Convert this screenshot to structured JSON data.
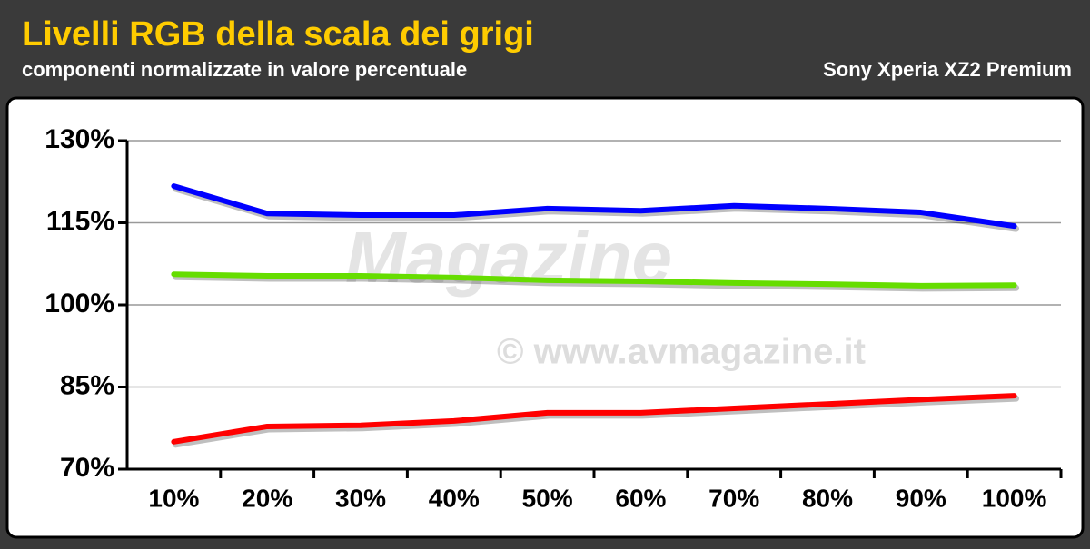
{
  "chart_data": {
    "type": "line",
    "title": "Livelli RGB della scala dei grigi",
    "subtitle": "componenti normalizzate in valore percentuale",
    "device": "Sony Xperia XZ2 Premium",
    "watermark": "© www.avmagazine.it",
    "watermark_logo": "Magazine",
    "categories": [
      "10%",
      "20%",
      "30%",
      "40%",
      "50%",
      "60%",
      "70%",
      "80%",
      "90%",
      "100%"
    ],
    "series": [
      {
        "color": "#0000ff",
        "values": [
          121.7,
          116.7,
          116.4,
          116.4,
          117.6,
          117.2,
          118.1,
          117.6,
          116.9,
          114.4
        ]
      },
      {
        "color": "#66dd00",
        "values": [
          105.6,
          105.3,
          105.3,
          105.0,
          104.5,
          104.3,
          104.0,
          103.8,
          103.5,
          103.6
        ]
      },
      {
        "color": "#ff0000",
        "values": [
          75.0,
          77.8,
          78.0,
          78.8,
          80.3,
          80.3,
          81.1,
          81.9,
          82.7,
          83.4
        ]
      }
    ],
    "ylim": [
      70,
      130
    ],
    "yticks": [
      {
        "value": 70,
        "label": "70%"
      },
      {
        "value": 85,
        "label": "85%"
      },
      {
        "value": 100,
        "label": "100%"
      },
      {
        "value": 115,
        "label": "115%"
      },
      {
        "value": 130,
        "label": "130%"
      }
    ],
    "grid": true
  }
}
